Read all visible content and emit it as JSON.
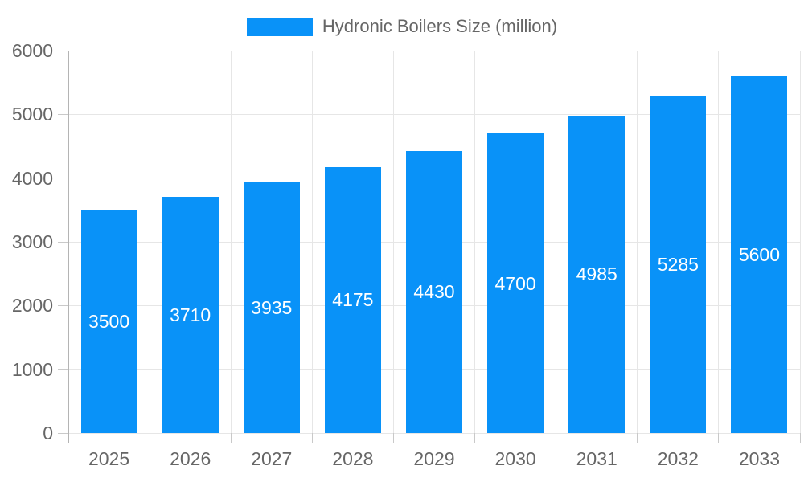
{
  "chart_data": {
    "type": "bar",
    "title": "Hydronic Boilers Size (million)",
    "legend": [
      "Hydronic Boilers Size (million)"
    ],
    "legend_position": "top",
    "categories": [
      "2025",
      "2026",
      "2027",
      "2028",
      "2029",
      "2030",
      "2031",
      "2032",
      "2033"
    ],
    "series": [
      {
        "name": "Hydronic Boilers Size (million)",
        "values": [
          3500,
          3710,
          3935,
          4175,
          4430,
          4700,
          4985,
          5285,
          5600
        ]
      }
    ],
    "bar_labels": [
      "3500",
      "3710",
      "3935",
      "4175",
      "4430",
      "4700",
      "4985",
      "5285",
      "5600"
    ],
    "xlabel": "",
    "ylabel": "",
    "ylim": [
      0,
      6000
    ],
    "y_ticks": [
      0,
      1000,
      2000,
      3000,
      4000,
      5000,
      6000
    ],
    "grid": true,
    "colors": {
      "bar": "#0992f8",
      "bar_label": "#ffffff",
      "axis_text": "#666666",
      "gridline": "#e6e6e6",
      "axis_line": "#b4b4b4",
      "tick_mark": "#c9c9c9",
      "background": "#ffffff"
    }
  }
}
